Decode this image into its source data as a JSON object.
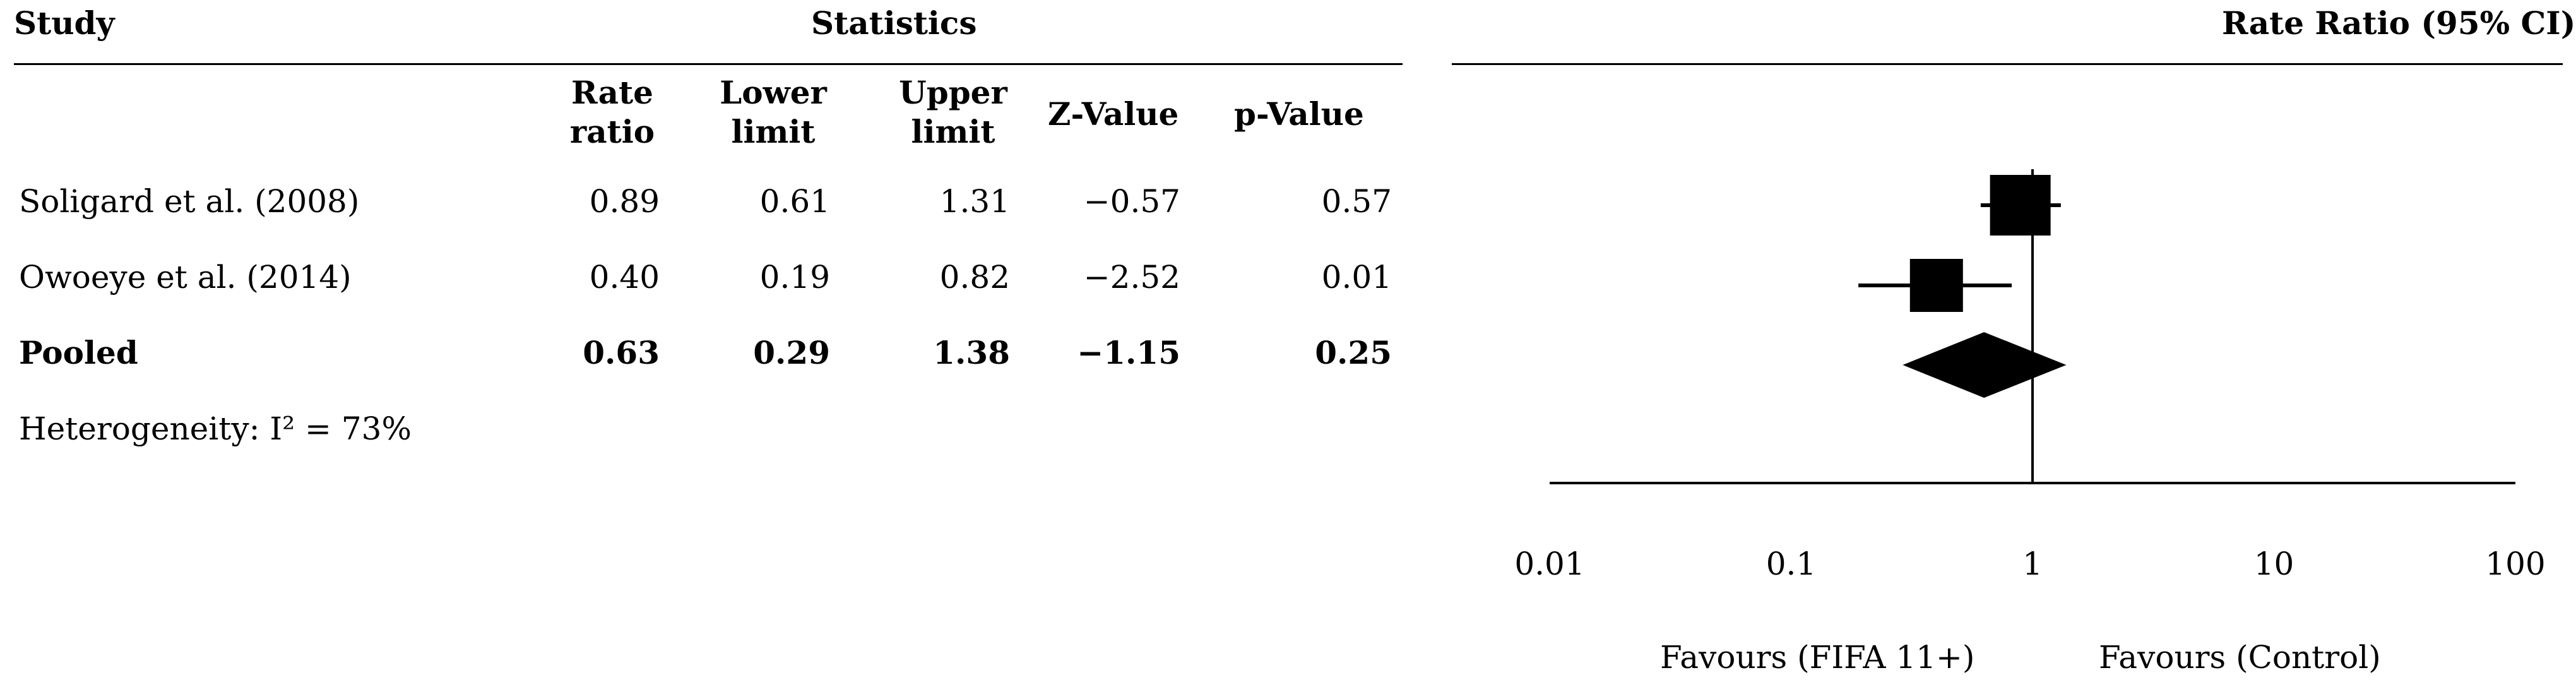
{
  "table": {
    "study_header": "Study",
    "statistics_header": "Statistics",
    "columns": [
      "Rate\nratio",
      "Lower\nlimit",
      "Upper\nlimit",
      "Z-Value",
      "p-Value"
    ],
    "rows": [
      {
        "study": "Soligard et al. (2008)",
        "rate_ratio": "0.89",
        "lower": "0.61",
        "upper": "1.31",
        "z": "−0.57",
        "p": "0.57"
      },
      {
        "study": "Owoeye et al. (2014)",
        "rate_ratio": "0.40",
        "lower": "0.19",
        "upper": "0.82",
        "z": "−2.52",
        "p": "0.01"
      }
    ],
    "pooled": {
      "study": "Pooled",
      "rate_ratio": "0.63",
      "lower": "0.29",
      "upper": "1.38",
      "z": "−1.15",
      "p": "0.25"
    },
    "heterogeneity": "Heterogeneity: I² = 73%"
  },
  "chart_data": {
    "type": "forest",
    "title": "Rate Ratio (95% CI)",
    "x_scale": "log",
    "xlim": [
      0.01,
      100
    ],
    "x_ticks": [
      "0.01",
      "0.1",
      "1",
      "10",
      "100"
    ],
    "reference_line": 1,
    "studies": [
      {
        "label": "Soligard et al. (2008)",
        "estimate": 0.89,
        "lower": 0.61,
        "upper": 1.31,
        "marker": "square",
        "marker_size": "large"
      },
      {
        "label": "Owoeye et al. (2014)",
        "estimate": 0.4,
        "lower": 0.19,
        "upper": 0.82,
        "marker": "square",
        "marker_size": "medium"
      }
    ],
    "pooled": {
      "label": "Pooled",
      "estimate": 0.63,
      "lower": 0.29,
      "upper": 1.38,
      "marker": "diamond"
    },
    "favours_left": "Favours (FIFA 11+)",
    "favours_right": "Favours (Control)"
  }
}
